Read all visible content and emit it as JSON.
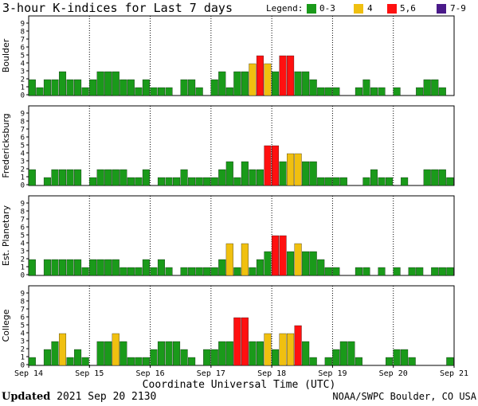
{
  "title": "3-hour K-indices for Last 7 days",
  "legend": {
    "label": "Legend:",
    "items": [
      {
        "label": "0-3",
        "color": "#1a9a1a"
      },
      {
        "label": "4",
        "color": "#f0c010"
      },
      {
        "label": "5,6",
        "color": "#ff1010"
      },
      {
        "label": "7-9",
        "color": "#4a1a8a"
      }
    ]
  },
  "footer": {
    "updated_label": "Updated",
    "updated_value": "2021 Sep 20 2130",
    "source": "NOAA/SWPC Boulder, CO USA"
  },
  "chart_data": {
    "type": "bar",
    "xlabel": "Coordinate Universal Time (UTC)",
    "x_ticks": [
      "Sep 14",
      "Sep 15",
      "Sep 16",
      "Sep 17",
      "Sep 18",
      "Sep 19",
      "Sep 20",
      "Sep 21"
    ],
    "ylim": [
      0,
      9
    ],
    "y_ticks": [
      0,
      1,
      2,
      3,
      4,
      5,
      6,
      7,
      8,
      9
    ],
    "bars_per_day": 8,
    "series": [
      {
        "name": "Boulder",
        "values": [
          2,
          1,
          2,
          2,
          3,
          2,
          2,
          1,
          2,
          3,
          3,
          3,
          2,
          2,
          1,
          2,
          1,
          1,
          1,
          0,
          2,
          2,
          1,
          0,
          2,
          3,
          1,
          3,
          3,
          4,
          5,
          4,
          3,
          5,
          5,
          3,
          3,
          2,
          1,
          1,
          1,
          0,
          0,
          1,
          2,
          1,
          1,
          0,
          1,
          0,
          0,
          1,
          2,
          2,
          1,
          0
        ]
      },
      {
        "name": "Fredericksburg",
        "values": [
          2,
          0,
          1,
          2,
          2,
          2,
          2,
          0,
          1,
          2,
          2,
          2,
          2,
          1,
          1,
          2,
          0,
          1,
          1,
          1,
          2,
          1,
          1,
          1,
          1,
          2,
          3,
          1,
          3,
          2,
          2,
          5,
          5,
          3,
          4,
          4,
          3,
          3,
          1,
          1,
          1,
          1,
          0,
          0,
          1,
          2,
          1,
          1,
          0,
          1,
          0,
          0,
          2,
          2,
          2,
          1
        ]
      },
      {
        "name": "Est. Planetary",
        "values": [
          2,
          0,
          2,
          2,
          2,
          2,
          2,
          1,
          2,
          2,
          2,
          2,
          1,
          1,
          1,
          2,
          1,
          2,
          1,
          0,
          1,
          1,
          1,
          1,
          1,
          2,
          4,
          1,
          4,
          1,
          2,
          3,
          5,
          5,
          3,
          4,
          3,
          3,
          2,
          1,
          1,
          0,
          0,
          1,
          1,
          0,
          1,
          0,
          1,
          0,
          1,
          1,
          0,
          1,
          1,
          1
        ]
      },
      {
        "name": "College",
        "values": [
          1,
          0,
          2,
          3,
          4,
          1,
          2,
          1,
          0,
          3,
          3,
          4,
          3,
          1,
          1,
          1,
          2,
          3,
          3,
          3,
          2,
          1,
          0,
          2,
          2,
          3,
          3,
          6,
          6,
          3,
          3,
          4,
          2,
          4,
          4,
          5,
          3,
          1,
          0,
          1,
          2,
          3,
          3,
          1,
          0,
          0,
          0,
          1,
          2,
          2,
          1,
          0,
          0,
          0,
          0,
          1
        ]
      }
    ]
  }
}
